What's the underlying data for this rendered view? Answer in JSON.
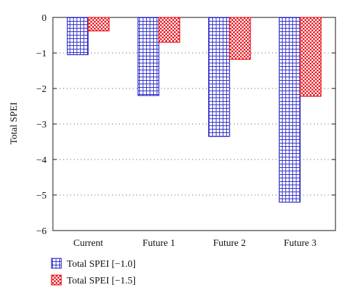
{
  "chart_data": {
    "type": "bar",
    "categories": [
      "Current",
      "Future 1",
      "Future 2",
      "Future 3"
    ],
    "series": [
      {
        "name": "Total SPEI [−1.0]",
        "values": [
          -1.05,
          -2.2,
          -3.35,
          -5.2
        ],
        "color": "#2b2bc8",
        "pattern": "grid"
      },
      {
        "name": "Total SPEI [−1.5]",
        "values": [
          -0.38,
          -0.7,
          -1.18,
          -2.22
        ],
        "color": "#e8141e",
        "pattern": "checker"
      }
    ],
    "ylabel": "Total SPEI",
    "xlabel": "",
    "ylim": [
      -6,
      0
    ],
    "yticks": [
      0,
      -1,
      -2,
      -3,
      -4,
      -5,
      -6
    ],
    "ytick_labels": [
      "0",
      "−1",
      "−2",
      "−3",
      "−4",
      "−5",
      "−6"
    ],
    "grid": "horizontal-dotted",
    "legend_position": "bottom-left"
  }
}
